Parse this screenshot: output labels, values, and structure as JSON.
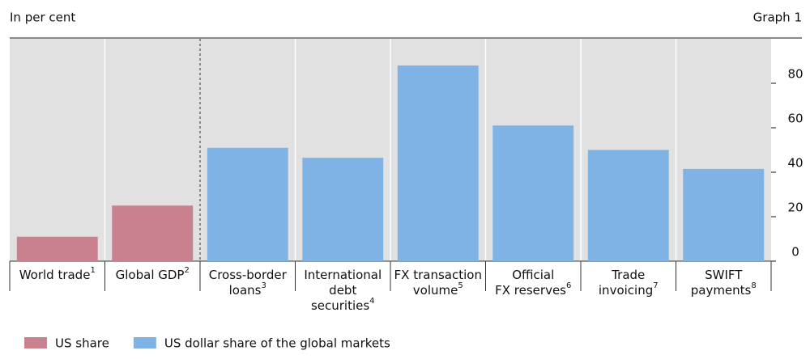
{
  "chart_data": {
    "type": "bar",
    "subtitle": "In per cent",
    "title": "Graph 1",
    "categories": [
      [
        "World trade"
      ],
      [
        "Global GDP"
      ],
      [
        "Cross-border",
        "loans"
      ],
      [
        "International",
        "debt",
        "securities"
      ],
      [
        "FX transaction",
        "volume"
      ],
      [
        "Official",
        "FX reserves"
      ],
      [
        "Trade",
        "invoicing"
      ],
      [
        "SWIFT",
        "payments"
      ]
    ],
    "category_notes": [
      "1",
      "2",
      "3",
      "4",
      "5",
      "6",
      "7",
      "8"
    ],
    "series": [
      {
        "name": "US share",
        "color": "#c9818f",
        "values": [
          11,
          25,
          null,
          null,
          null,
          null,
          null,
          null
        ]
      },
      {
        "name": "US dollar share of the global markets",
        "color": "#7fb2e5",
        "values": [
          null,
          null,
          51,
          46.5,
          88,
          61,
          50,
          41.5
        ]
      }
    ],
    "ylim": [
      0,
      100
    ],
    "yticks": [
      0,
      20,
      40,
      60,
      80
    ]
  }
}
